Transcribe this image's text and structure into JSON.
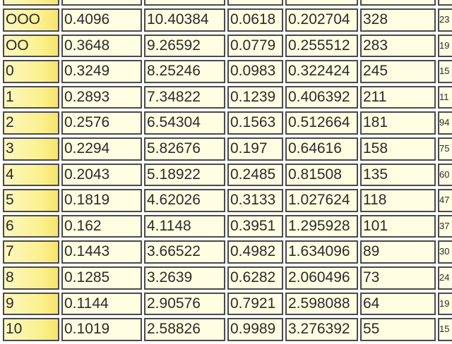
{
  "table": {
    "rows": [
      [
        "",
        "",
        "",
        "",
        "",
        "",
        ""
      ],
      [
        "OOO",
        "0.4096",
        "10.40384",
        "0.0618",
        "0.202704",
        "328",
        "23"
      ],
      [
        "OO",
        "0.3648",
        "9.26592",
        "0.0779",
        "0.255512",
        "283",
        "19"
      ],
      [
        "0",
        "0.3249",
        "8.25246",
        "0.0983",
        "0.322424",
        "245",
        "15"
      ],
      [
        "1",
        "0.2893",
        "7.34822",
        "0.1239",
        "0.406392",
        "211",
        "11"
      ],
      [
        "2",
        "0.2576",
        "6.54304",
        "0.1563",
        "0.512664",
        "181",
        "94"
      ],
      [
        "3",
        "0.2294",
        "5.82676",
        "0.197",
        "0.64616",
        "158",
        "75"
      ],
      [
        "4",
        "0.2043",
        "5.18922",
        "0.2485",
        "0.81508",
        "135",
        "60"
      ],
      [
        "5",
        "0.1819",
        "4.62026",
        "0.3133",
        "1.027624",
        "118",
        "47"
      ],
      [
        "6",
        "0.162",
        "4.1148",
        "0.3951",
        "1.295928",
        "101",
        "37"
      ],
      [
        "7",
        "0.1443",
        "3.66522",
        "0.4982",
        "1.634096",
        "89",
        "30"
      ],
      [
        "8",
        "0.1285",
        "3.2639",
        "0.6282",
        "2.060496",
        "73",
        "24"
      ],
      [
        "9",
        "0.1144",
        "2.90576",
        "0.7921",
        "2.598088",
        "64",
        "19"
      ],
      [
        "10",
        "0.1019",
        "2.58826",
        "0.9989",
        "3.276392",
        "55",
        "15"
      ]
    ]
  },
  "colors": {
    "cell_bg": "#fffde2",
    "gauge_bg": "#f6e46a",
    "border": "#4a4a4a"
  }
}
